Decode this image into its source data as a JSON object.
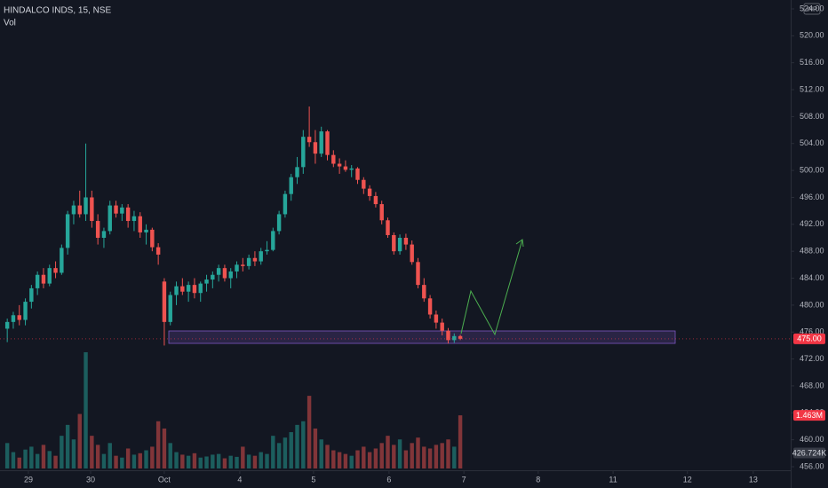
{
  "chart_data": {
    "type": "candlestick",
    "title": "HINDALCO INDS, 15, NSE",
    "volume_label": "Vol",
    "currency": "INR",
    "up_color": "#26a69a",
    "down_color": "#ef5350",
    "grid": false,
    "xlim": [
      -1.2,
      129.7
    ],
    "xticks": [
      {
        "value": 3.5,
        "label": "29"
      },
      {
        "value": 13.8,
        "label": "30"
      },
      {
        "value": 26,
        "label": "Oct"
      },
      {
        "value": 38.5,
        "label": "4"
      },
      {
        "value": 50.7,
        "label": "5"
      },
      {
        "value": 63.2,
        "label": "6"
      },
      {
        "value": 75.6,
        "label": "7"
      },
      {
        "value": 87.9,
        "label": "8"
      },
      {
        "value": 100.3,
        "label": "11"
      },
      {
        "value": 112.6,
        "label": "12"
      },
      {
        "value": 123.5,
        "label": "13"
      }
    ],
    "ylim": [
      456,
      524
    ],
    "yticks": [
      {
        "value": 456,
        "label": "456.00"
      },
      {
        "value": 460,
        "label": "460.00"
      },
      {
        "value": 464,
        "label": "464.00"
      },
      {
        "value": 468,
        "label": "468.00"
      },
      {
        "value": 472,
        "label": "472.00"
      },
      {
        "value": 476,
        "label": "476.00"
      },
      {
        "value": 480,
        "label": "480.00"
      },
      {
        "value": 484,
        "label": "484.00"
      },
      {
        "value": 488,
        "label": "488.00"
      },
      {
        "value": 492,
        "label": "492.00"
      },
      {
        "value": 496,
        "label": "496.00"
      },
      {
        "value": 500,
        "label": "500.00"
      },
      {
        "value": 504,
        "label": "504.00"
      },
      {
        "value": 508,
        "label": "508.00"
      },
      {
        "value": 512,
        "label": "512.00"
      },
      {
        "value": 516,
        "label": "516.00"
      },
      {
        "value": 520,
        "label": "520.00"
      },
      {
        "value": 524,
        "label": "524.00"
      }
    ],
    "volume_lim": [
      0,
      12700000
    ],
    "open": [
      476.5,
      477.5,
      478.5,
      477.8,
      480.5,
      482.5,
      484.5,
      483.2,
      485.5,
      484.8,
      488.5,
      493.5,
      494.8,
      493.5,
      496,
      492.5,
      490,
      491,
      494.8,
      493.6,
      494.5,
      492.5,
      493.2,
      490.8,
      491.2,
      488.6,
      483.5,
      477.5,
      481.5,
      482.8,
      482,
      483,
      481.8,
      483.2,
      483.8,
      484.5,
      485.5,
      484,
      485,
      486,
      485.8,
      487,
      486.5,
      488,
      488.2,
      491,
      493.5,
      496.5,
      499,
      500.5,
      505,
      504.2,
      502.5,
      505.8,
      502.3,
      501,
      500.6,
      500.1,
      500.3,
      498.6,
      497.3,
      496.2,
      495,
      492.6,
      490.4,
      488,
      490,
      489,
      486.4,
      483,
      481,
      478.6,
      477.4,
      476.2,
      474.8,
      475.4
    ],
    "high": [
      478,
      479,
      480,
      481,
      483,
      485,
      485.5,
      486,
      486.5,
      489,
      494,
      495.5,
      497,
      504,
      497,
      493.5,
      491.5,
      495.5,
      495.5,
      495,
      495,
      494,
      493.8,
      492,
      491.5,
      489.2,
      484,
      482,
      483.5,
      484,
      483.5,
      484,
      483.5,
      484.5,
      485,
      486,
      486,
      485.5,
      486.5,
      487,
      487.5,
      488,
      488.5,
      489.5,
      491.5,
      494,
      497,
      499.5,
      502,
      506,
      509.5,
      506,
      506.5,
      506,
      503,
      501.8,
      501.5,
      500.8,
      500.5,
      499,
      497.8,
      496.8,
      495.5,
      493,
      490.8,
      490.5,
      490.6,
      489.6,
      487,
      484,
      481.5,
      479.2,
      478,
      476.6,
      475.8,
      475.6
    ],
    "low": [
      474.5,
      476.5,
      477,
      477,
      479.5,
      481.5,
      482.5,
      482.8,
      484,
      484.5,
      487.5,
      492,
      493,
      492.5,
      491.5,
      489,
      488.5,
      490.5,
      493,
      492.5,
      491.5,
      491,
      490,
      489,
      488,
      486,
      474,
      477,
      480,
      481.5,
      480.5,
      481,
      480.5,
      482,
      482.5,
      483.5,
      483.5,
      482.5,
      484,
      485,
      485.3,
      485.8,
      486,
      487.5,
      488,
      490.5,
      493,
      495.5,
      498,
      499.5,
      503.5,
      501,
      502,
      501.5,
      500.5,
      499.5,
      499.8,
      499,
      498,
      496.5,
      495.5,
      494.5,
      492,
      490,
      487.5,
      487.5,
      488.2,
      486,
      482.5,
      480.5,
      478,
      476.5,
      475.5,
      474.3,
      474.4,
      474.8
    ],
    "close": [
      477.5,
      478.5,
      477.8,
      480.5,
      482.5,
      484.5,
      483.2,
      485.5,
      484.8,
      488.5,
      493.5,
      494.8,
      493.5,
      496,
      492.5,
      490,
      491,
      494.8,
      493.6,
      494.5,
      492.5,
      493.2,
      490.8,
      491.2,
      488.6,
      487.5,
      477.5,
      481.5,
      482.8,
      482,
      483,
      481.8,
      483.2,
      483.8,
      484.5,
      485.5,
      484,
      485,
      486,
      485.8,
      487,
      486.5,
      488,
      488.2,
      491,
      493.5,
      496.5,
      499,
      500.5,
      505,
      504.2,
      502.5,
      505.8,
      502.3,
      501,
      500.6,
      500.1,
      500.3,
      498.6,
      497.3,
      496.2,
      495,
      492.6,
      490.4,
      488,
      490,
      489,
      486.4,
      483,
      481,
      478.6,
      477.4,
      476.2,
      474.8,
      475.4,
      475
    ],
    "volume": [
      700000,
      450000,
      300000,
      520000,
      600000,
      400000,
      650000,
      480000,
      350000,
      900000,
      1200000,
      800000,
      1500000,
      3200000,
      900000,
      650000,
      400000,
      700000,
      350000,
      300000,
      550000,
      380000,
      420000,
      500000,
      600000,
      1300000,
      1100000,
      700000,
      450000,
      380000,
      350000,
      420000,
      300000,
      330000,
      380000,
      400000,
      280000,
      350000,
      320000,
      600000,
      380000,
      350000,
      450000,
      400000,
      900000,
      700000,
      850000,
      1000000,
      1200000,
      1300000,
      2000000,
      1100000,
      800000,
      650000,
      500000,
      450000,
      400000,
      350000,
      500000,
      600000,
      450000,
      550000,
      700000,
      900000,
      650000,
      800000,
      500000,
      700000,
      850000,
      600000,
      550000,
      650000,
      700000,
      800000,
      600000,
      1463000
    ],
    "last_price": {
      "value": 475,
      "label": "475.00"
    },
    "last_volume": {
      "value": 1463000,
      "label": "1.463M"
    },
    "volume_ma": {
      "value": 426724,
      "label": "426.724K"
    }
  }
}
